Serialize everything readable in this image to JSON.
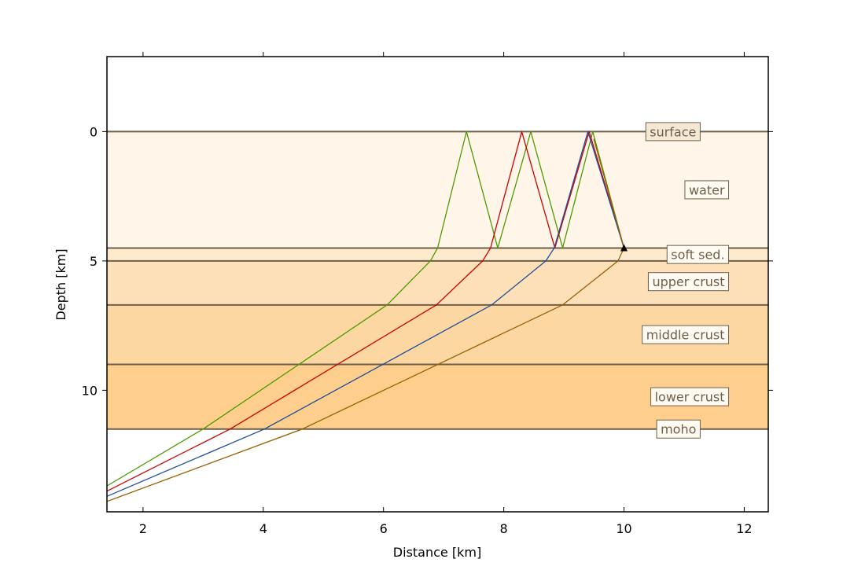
{
  "chart_data": {
    "type": "line",
    "title": "",
    "xlabel": "Distance [km]",
    "ylabel": "Depth [km]",
    "xlim": [
      1.4,
      12.4
    ],
    "ylim": [
      14.7,
      -2.9
    ],
    "y_inverted": true,
    "grid": false,
    "legend": "none",
    "x_ticks": [
      2,
      4,
      6,
      8,
      10,
      12
    ],
    "y_ticks": [
      0,
      5,
      10
    ],
    "layers": [
      {
        "name": "surface",
        "depth": 0.0
      },
      {
        "name": "water",
        "depth": 0.0
      },
      {
        "name": "soft sed.",
        "depth": 4.5
      },
      {
        "name": "upper crust",
        "depth": 5.0
      },
      {
        "name": "middle crust",
        "depth": 6.7
      },
      {
        "name": "lower crust",
        "depth": 9.0
      },
      {
        "name": "moho",
        "depth": 11.5
      }
    ],
    "layer_colors": [
      "#fff5e8",
      "#feeacc",
      "#fde0b8",
      "#fdd7a2",
      "#fdce8c"
    ],
    "interface_depths": [
      0.0,
      4.5,
      5.0,
      6.7,
      9.0,
      11.5
    ],
    "interface_color": "#6e5f4a",
    "station": {
      "x": 10.0,
      "depth": 4.5
    },
    "series": [
      {
        "color": "#4f9a00",
        "x": [
          1.4,
          3.0,
          6.06,
          6.78,
          6.9,
          7.38,
          7.9,
          8.45,
          8.98,
          9.48,
          10.0
        ],
        "y": [
          13.7,
          11.5,
          6.7,
          5.0,
          4.5,
          0.0,
          4.5,
          0.0,
          4.5,
          0.0,
          4.5
        ]
      },
      {
        "color": "#cc0000",
        "x": [
          1.4,
          3.45,
          6.88,
          7.65,
          7.78,
          8.3,
          8.85,
          9.42,
          10.0
        ],
        "y": [
          13.9,
          11.5,
          6.7,
          5.0,
          4.5,
          0.0,
          4.5,
          0.0,
          4.5
        ]
      },
      {
        "color": "#1f4e9a",
        "x": [
          1.4,
          4.02,
          7.8,
          8.7,
          8.84,
          9.4,
          10.0
        ],
        "y": [
          14.1,
          11.5,
          6.7,
          5.0,
          4.5,
          0.0,
          4.5
        ]
      },
      {
        "color": "#996000",
        "x": [
          1.4,
          4.65,
          8.98,
          9.9,
          10.0,
          9.5,
          10.0
        ],
        "y": [
          14.3,
          11.5,
          6.7,
          5.0,
          4.5,
          0.3,
          4.5
        ]
      }
    ]
  }
}
